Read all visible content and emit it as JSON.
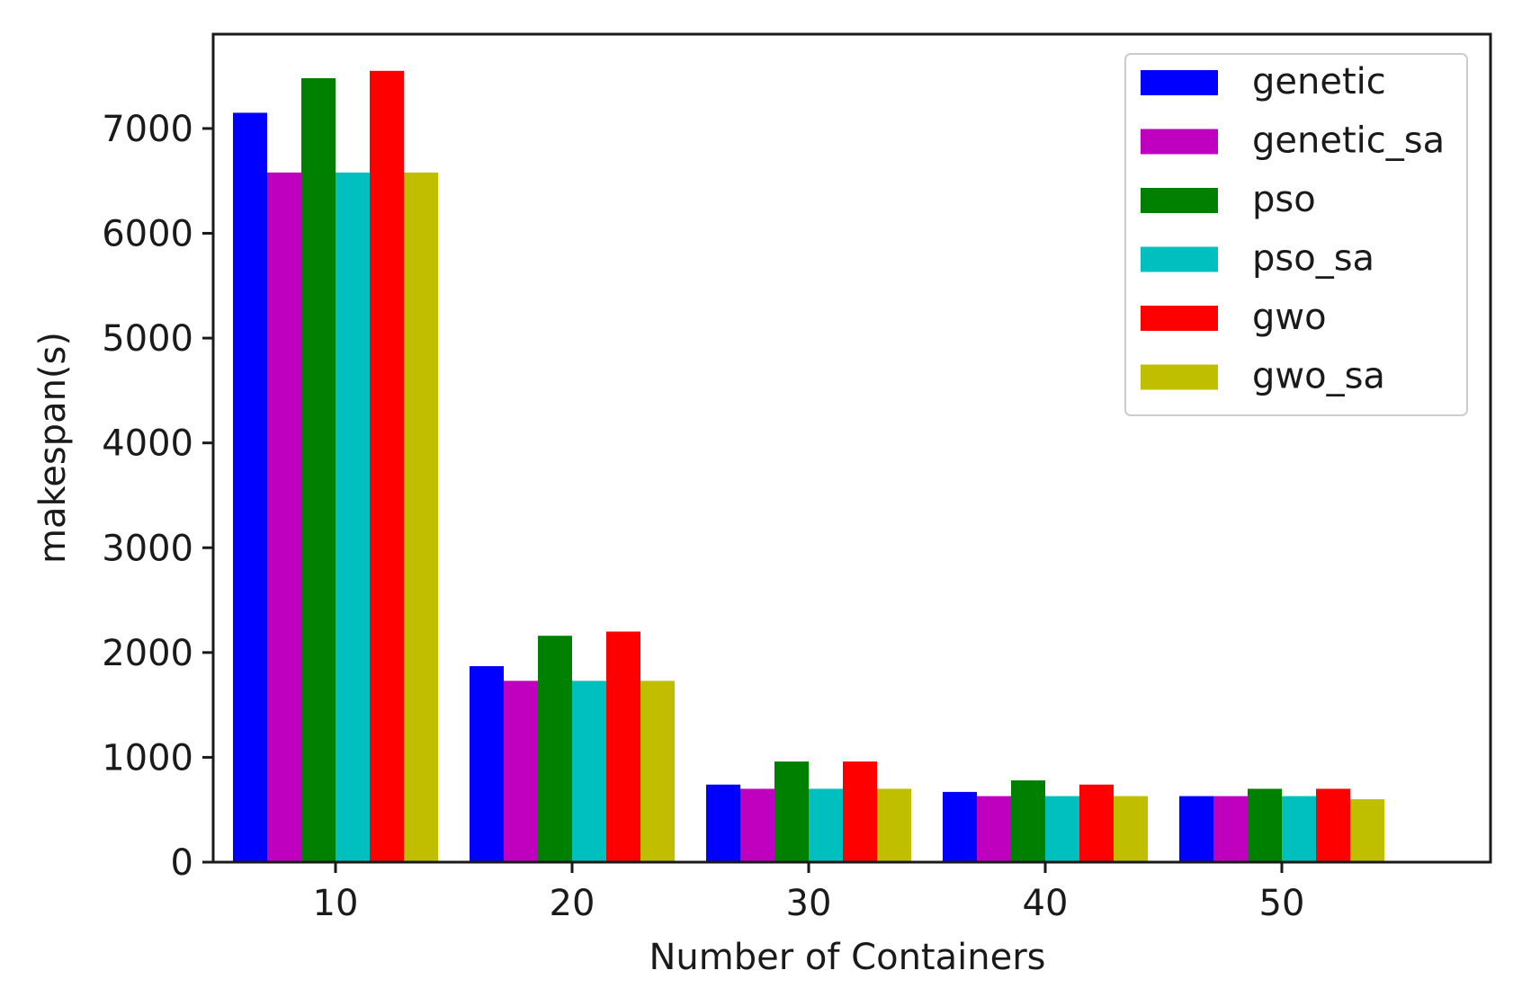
{
  "chart_data": {
    "type": "bar",
    "title": "",
    "xlabel": "Number of Containers",
    "ylabel": "makespan(s)",
    "categories": [
      "10",
      "20",
      "30",
      "40",
      "50"
    ],
    "ylim": [
      0,
      7900
    ],
    "yticks": [
      0,
      1000,
      2000,
      3000,
      4000,
      5000,
      6000,
      7000
    ],
    "yticklabels": [
      "0",
      "1000",
      "2000",
      "3000",
      "4000",
      "5000",
      "6000",
      "7000"
    ],
    "grid": false,
    "legend_position": "top-right",
    "series": [
      {
        "name": "genetic",
        "color": "#0000ff",
        "values": [
          7150,
          1870,
          740,
          670,
          630
        ]
      },
      {
        "name": "genetic_sa",
        "color": "#bf00bf",
        "values": [
          6580,
          1730,
          700,
          630,
          630
        ]
      },
      {
        "name": "pso",
        "color": "#008000",
        "values": [
          7480,
          2160,
          960,
          780,
          700
        ]
      },
      {
        "name": "pso_sa",
        "color": "#00bfbf",
        "values": [
          6580,
          1730,
          700,
          630,
          630
        ]
      },
      {
        "name": "gwo",
        "color": "#ff0000",
        "values": [
          7550,
          2200,
          960,
          740,
          700
        ]
      },
      {
        "name": "gwo_sa",
        "color": "#bfbf00",
        "values": [
          6580,
          1730,
          700,
          630,
          600
        ]
      }
    ]
  }
}
